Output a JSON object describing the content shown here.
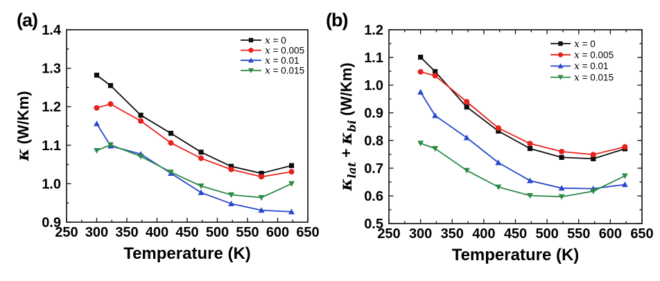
{
  "figure": {
    "background": "#ffffff",
    "panels": [
      {
        "label": "(a)"
      },
      {
        "label": "(b)"
      }
    ]
  },
  "colors": {
    "black": "#0d0d0d",
    "red": "#e8211d",
    "blue": "#2747cc",
    "green": "#2b8a44",
    "axis": "#1a1a1a"
  },
  "chart_data": [
    {
      "id": "a",
      "type": "line",
      "title": "",
      "xlabel": "Temperature (K)",
      "ylabel": "κ (W/Km)",
      "ylabel_parts": [
        {
          "text": "κ",
          "kind": "kappa"
        },
        {
          "text": " (W/Km)",
          "kind": "text"
        }
      ],
      "x": [
        300,
        323,
        373,
        423,
        473,
        523,
        573,
        623
      ],
      "xlim": [
        250,
        650
      ],
      "ylim": [
        0.9,
        1.4
      ],
      "xticks": [
        250,
        300,
        350,
        400,
        450,
        500,
        550,
        600,
        650
      ],
      "yticks": [
        0.9,
        1.0,
        1.1,
        1.2,
        1.3,
        1.4
      ],
      "ytick_decimals": 1,
      "xminor": 25,
      "yminor": 0.05,
      "grid": false,
      "legend_position": "top-right",
      "series": [
        {
          "name": "x = 0",
          "color": "black",
          "marker": "square",
          "values": [
            1.282,
            1.255,
            1.178,
            1.131,
            1.082,
            1.045,
            1.027,
            1.047
          ]
        },
        {
          "name": "x = 0.005",
          "color": "red",
          "marker": "circle",
          "values": [
            1.197,
            1.207,
            1.163,
            1.106,
            1.066,
            1.037,
            1.018,
            1.031
          ]
        },
        {
          "name": "x = 0.01",
          "color": "blue",
          "marker": "triangle-up",
          "values": [
            1.156,
            1.098,
            1.077,
            1.027,
            0.977,
            0.948,
            0.931,
            0.927
          ]
        },
        {
          "name": "x = 0.015",
          "color": "green",
          "marker": "triangle-down",
          "values": [
            1.086,
            1.101,
            1.071,
            1.03,
            0.994,
            0.971,
            0.964,
            1.0
          ]
        }
      ]
    },
    {
      "id": "b",
      "type": "line",
      "title": "",
      "xlabel": "Temperature (K)",
      "ylabel": "κlat + κbi (W/Km)",
      "ylabel_parts": [
        {
          "text": "κ",
          "kind": "kappa"
        },
        {
          "text": "lat",
          "kind": "sub"
        },
        {
          "text": " + ",
          "kind": "text"
        },
        {
          "text": "κ",
          "kind": "kappa"
        },
        {
          "text": "bi",
          "kind": "sub"
        },
        {
          "text": " (W/Km)",
          "kind": "text"
        }
      ],
      "x": [
        300,
        323,
        373,
        423,
        473,
        523,
        573,
        623
      ],
      "xlim": [
        250,
        650
      ],
      "ylim": [
        0.5,
        1.2
      ],
      "xticks": [
        250,
        300,
        350,
        400,
        450,
        500,
        550,
        600,
        650
      ],
      "yticks": [
        0.5,
        0.6,
        0.7,
        0.8,
        0.9,
        1.0,
        1.1,
        1.2
      ],
      "ytick_decimals": 1,
      "xminor": 25,
      "yminor": 0.05,
      "grid": false,
      "legend_position": "top-right",
      "series": [
        {
          "name": "x = 0",
          "color": "black",
          "marker": "square",
          "values": [
            1.101,
            1.049,
            0.921,
            0.834,
            0.771,
            0.739,
            0.734,
            0.77
          ]
        },
        {
          "name": "x = 0.005",
          "color": "red",
          "marker": "circle",
          "values": [
            1.048,
            1.034,
            0.94,
            0.845,
            0.789,
            0.76,
            0.749,
            0.777
          ]
        },
        {
          "name": "x = 0.01",
          "color": "blue",
          "marker": "triangle-up",
          "values": [
            0.975,
            0.89,
            0.81,
            0.72,
            0.655,
            0.628,
            0.626,
            0.641
          ]
        },
        {
          "name": "x = 0.015",
          "color": "green",
          "marker": "triangle-down",
          "values": [
            0.79,
            0.771,
            0.692,
            0.632,
            0.601,
            0.597,
            0.617,
            0.672
          ]
        }
      ]
    }
  ]
}
